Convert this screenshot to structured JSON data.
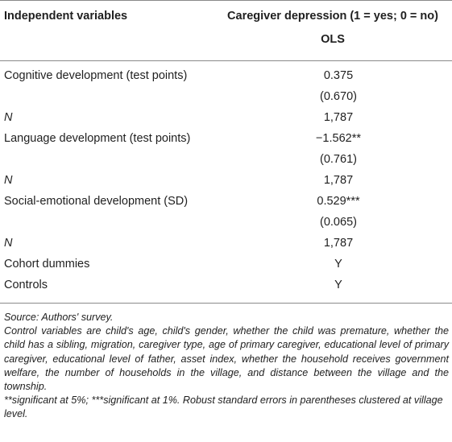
{
  "header": {
    "col1": "Independent variables",
    "col2_line1": "Caregiver depression (1 = yes; 0 = no)",
    "col2_line2": "OLS"
  },
  "rows": [
    {
      "label": "Cognitive development (test points)",
      "value": "0.375"
    },
    {
      "label": "",
      "value": "(0.670)"
    },
    {
      "label": "N",
      "value": "1,787"
    },
    {
      "label": "Language development (test points)",
      "value": "−1.562**"
    },
    {
      "label": "",
      "value": "(0.761)"
    },
    {
      "label": "N",
      "value": "1,787"
    },
    {
      "label": "Social-emotional development (SD)",
      "value": "0.529***"
    },
    {
      "label": "",
      "value": "(0.065)"
    },
    {
      "label": "N",
      "value": "1,787"
    },
    {
      "label": "Cohort dummies",
      "value": "Y"
    },
    {
      "label": "Controls",
      "value": "Y"
    }
  ],
  "notes": {
    "source": "Source: Authors' survey.",
    "controls": "Control variables are child's age, child's gender, whether the child was premature, whether the child has a sibling, migration, caregiver type, age of primary caregiver, educational level of primary caregiver, educational level of father, asset index, whether the household receives government welfare, the number of households in the village, and distance between the village and the township.",
    "significance": "**significant at 5%; ***significant at 1%. Robust standard errors in parentheses clustered at village level."
  }
}
